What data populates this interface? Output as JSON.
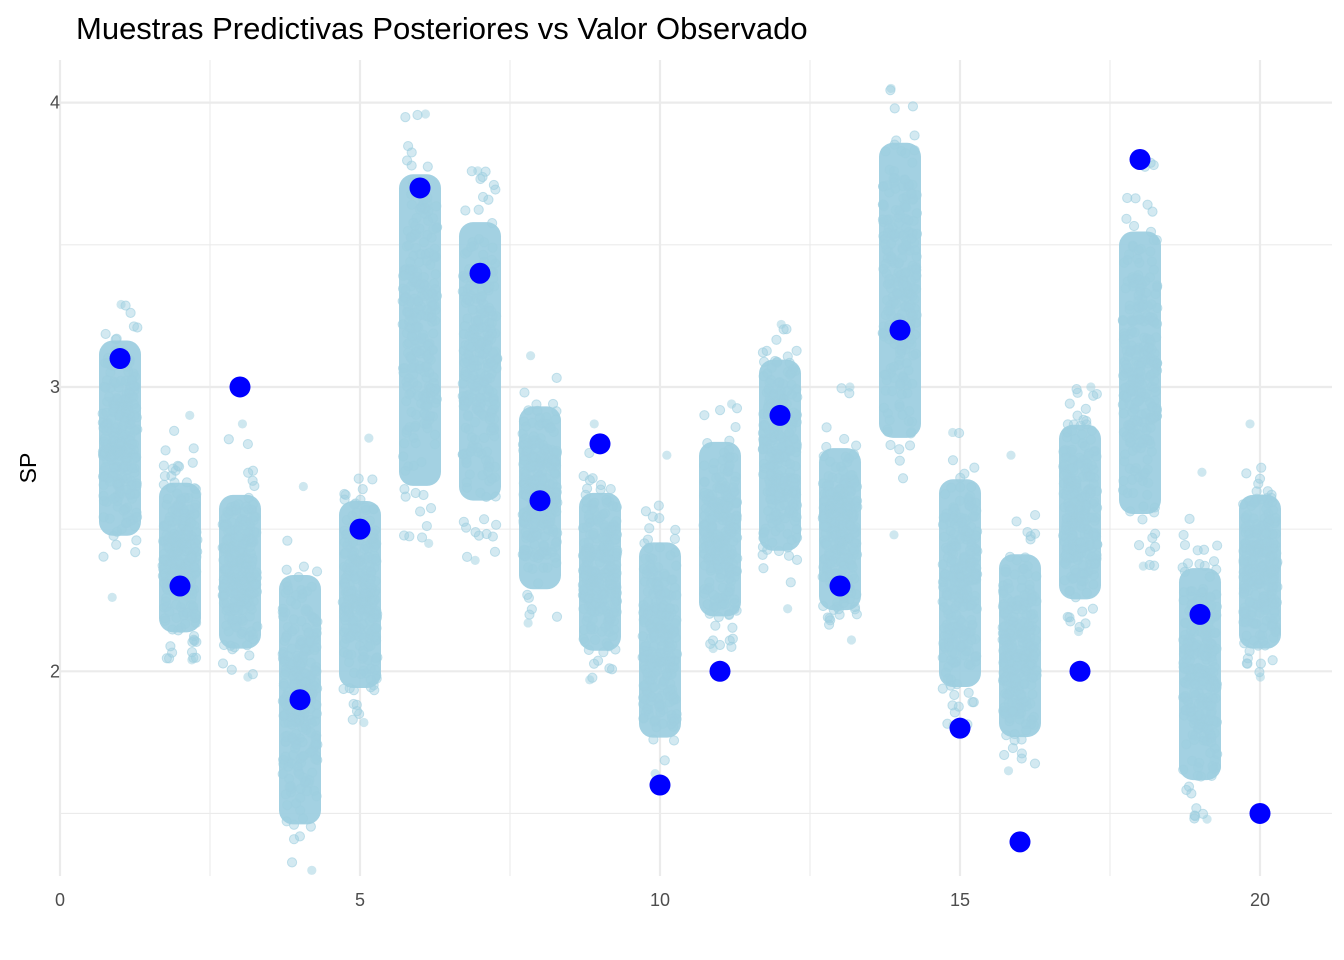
{
  "chart_data": {
    "type": "scatter",
    "title": "Muestras Predictivas Posteriores vs Valor Observado",
    "xlabel": "",
    "ylabel": "SP",
    "xlim": [
      0,
      21.2
    ],
    "ylim": [
      1.28,
      4.15
    ],
    "x_ticks": [
      0,
      5,
      10,
      15,
      20
    ],
    "y_ticks": [
      2,
      3,
      4
    ],
    "grid": true,
    "legend": "none",
    "colors": {
      "samples": "#9ecfe0",
      "observed": "#0000ff",
      "grid": "#ebebeb"
    },
    "series": [
      {
        "kind": "posterior_samples",
        "x": [
          1,
          2,
          3,
          4,
          5,
          6,
          7,
          8,
          9,
          10,
          11,
          12,
          13,
          14,
          15,
          16,
          17,
          18,
          19,
          20
        ],
        "center": [
          2.82,
          2.4,
          2.35,
          1.9,
          2.27,
          3.2,
          3.09,
          2.61,
          2.35,
          2.11,
          2.5,
          2.76,
          2.5,
          3.34,
          2.31,
          2.09,
          2.56,
          3.05,
          1.99,
          2.35
        ],
        "low": [
          2.26,
          2.04,
          1.98,
          1.3,
          1.82,
          2.45,
          2.39,
          2.17,
          1.97,
          1.64,
          2.08,
          2.22,
          2.11,
          2.48,
          1.81,
          1.65,
          2.14,
          2.37,
          1.48,
          1.98
        ],
        "high": [
          3.29,
          2.9,
          2.87,
          2.65,
          2.82,
          3.96,
          3.76,
          3.11,
          2.87,
          2.76,
          2.94,
          3.22,
          3.0,
          4.05,
          2.84,
          2.76,
          3.0,
          3.8,
          2.7,
          2.87
        ]
      },
      {
        "kind": "observed",
        "x": [
          1,
          2,
          3,
          4,
          5,
          6,
          7,
          8,
          9,
          10,
          11,
          12,
          13,
          14,
          15,
          16,
          17,
          18,
          19,
          20
        ],
        "y": [
          3.1,
          2.3,
          3.0,
          1.9,
          2.5,
          3.7,
          3.4,
          2.6,
          2.8,
          1.6,
          2.0,
          2.9,
          2.3,
          3.2,
          1.8,
          1.4,
          2.0,
          3.8,
          2.2,
          1.5
        ]
      }
    ]
  }
}
